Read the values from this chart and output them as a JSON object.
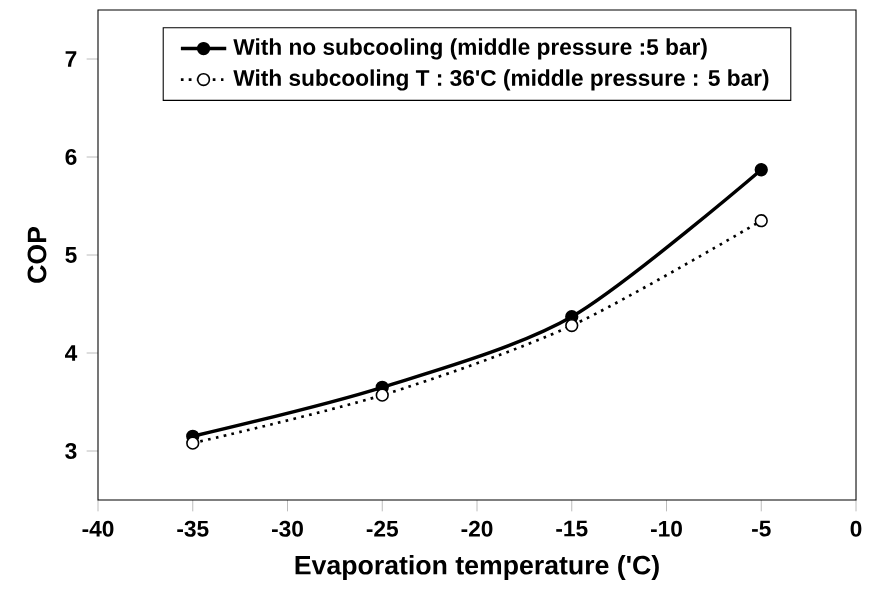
{
  "chart_data": {
    "type": "line",
    "xlabel": "Evaporation temperature ('C)",
    "ylabel": "COP",
    "x": [
      -35,
      -25,
      -15,
      -5
    ],
    "series": [
      {
        "name": "With no subcooling (middle pressure :5 bar)",
        "color": "#000000",
        "values": [
          3.15,
          3.65,
          4.37,
          5.87
        ],
        "line_style": "solid",
        "marker": "circle"
      },
      {
        "name": "With subcooling T : 36'C (middle pressure : 5 bar)",
        "color": "#000000",
        "values": [
          3.08,
          3.57,
          4.28,
          5.35
        ],
        "line_style": "dotted",
        "marker": "circle"
      }
    ],
    "xlim": [
      -40,
      0
    ],
    "xticks": [
      -40,
      -35,
      -30,
      -25,
      -20,
      -15,
      -10,
      -5,
      0
    ],
    "ylim": [
      2.5,
      7.5
    ],
    "yticks": [
      3,
      4,
      5,
      6,
      7
    ],
    "grid": false,
    "legend": "top"
  }
}
